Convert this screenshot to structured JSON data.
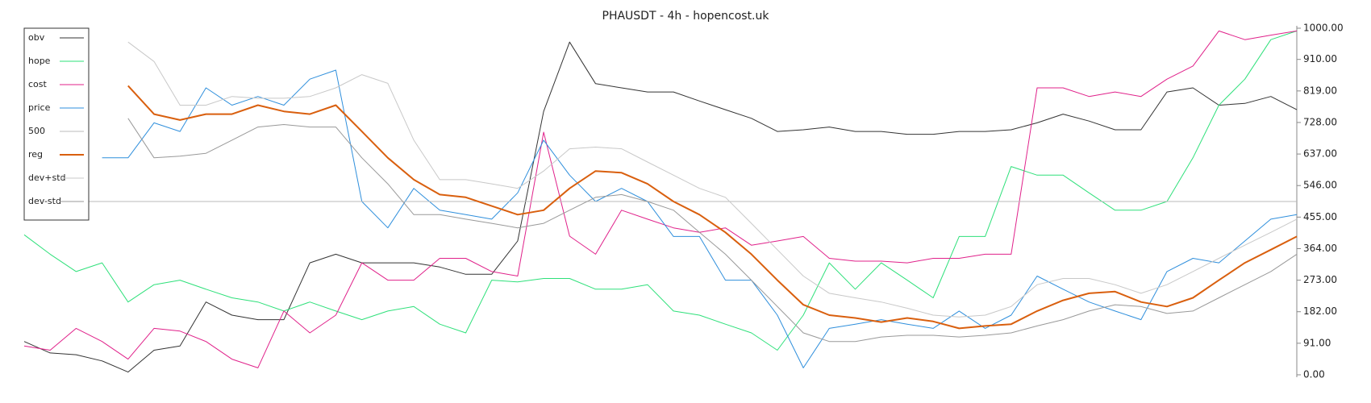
{
  "chart_data": {
    "type": "line",
    "title": "PHAUSDT - 4h - hopencost.uk",
    "ylim": [
      0,
      1000
    ],
    "yticks": [
      {
        "value": 0,
        "label": "0.00"
      },
      {
        "value": 91,
        "label": "91.00"
      },
      {
        "value": 182,
        "label": "182.00"
      },
      {
        "value": 273,
        "label": "273.00"
      },
      {
        "value": 364,
        "label": "364.00"
      },
      {
        "value": 455,
        "label": "455.00"
      },
      {
        "value": 546,
        "label": "546.00"
      },
      {
        "value": 637,
        "label": "637.00"
      },
      {
        "value": 728,
        "label": "728.00"
      },
      {
        "value": 819,
        "label": "819.00"
      },
      {
        "value": 910,
        "label": "910.00"
      },
      {
        "value": 1000,
        "label": "1000.00"
      }
    ],
    "legend": "top-left",
    "series": [
      {
        "name": "obv",
        "color": "#333333",
        "width": 1,
        "values": [
          96,
          63,
          58,
          40,
          8,
          71,
          83,
          210,
          172,
          159,
          159,
          323,
          348,
          323,
          323,
          323,
          311,
          290,
          290,
          386,
          760,
          960,
          840,
          828,
          816,
          816,
          790,
          765,
          740,
          702,
          707,
          715,
          702,
          702,
          694,
          694,
          702,
          702,
          707,
          727,
          752,
          732,
          707,
          707,
          816,
          828,
          778,
          783,
          803,
          765
        ]
      },
      {
        "name": "hope",
        "color": "#2ee07a",
        "width": 1,
        "values": [
          404,
          348,
          298,
          323,
          210,
          260,
          273,
          247,
          222,
          210,
          184,
          210,
          184,
          159,
          184,
          197,
          146,
          121,
          273,
          268,
          278,
          278,
          247,
          247,
          260,
          184,
          172,
          146,
          121,
          71,
          172,
          323,
          247,
          323,
          273,
          222,
          399,
          399,
          601,
          576,
          576,
          525,
          475,
          475,
          500,
          626,
          778,
          853,
          967,
          992
        ]
      },
      {
        "name": "cost",
        "color": "#e0218a",
        "width": 1,
        "values": [
          83,
          71,
          134,
          96,
          45,
          134,
          126,
          96,
          45,
          20,
          184,
          121,
          172,
          323,
          273,
          273,
          336,
          336,
          298,
          285,
          700,
          400,
          348,
          475,
          449,
          424,
          411,
          424,
          374,
          386,
          399,
          336,
          328,
          328,
          323,
          336,
          336,
          348,
          348,
          828,
          828,
          803,
          816,
          803,
          853,
          891,
          992,
          967,
          980,
          992
        ]
      },
      {
        "name": "price",
        "color": "#2f8fdc",
        "width": 1,
        "values": [
          null,
          null,
          null,
          626,
          626,
          727,
          702,
          828,
          778,
          803,
          778,
          853,
          879,
          500,
          424,
          538,
          475,
          462,
          449,
          525,
          677,
          576,
          500,
          538,
          500,
          399,
          399,
          273,
          273,
          172,
          20,
          134,
          146,
          159,
          146,
          134,
          184,
          134,
          172,
          285,
          247,
          210,
          184,
          159,
          298,
          336,
          323,
          386,
          449,
          462
        ]
      },
      {
        "name": "500",
        "color": "#bbbbbb",
        "width": 1,
        "values": [
          500,
          500,
          500,
          500,
          500,
          500,
          500,
          500,
          500,
          500,
          500,
          500,
          500,
          500,
          500,
          500,
          500,
          500,
          500,
          500,
          500,
          500,
          500,
          500,
          500,
          500,
          500,
          500,
          500,
          500,
          500,
          500,
          500,
          500,
          500,
          500,
          500,
          500,
          500,
          500,
          500,
          500,
          500,
          500,
          500,
          500,
          500,
          500,
          500,
          500
        ]
      },
      {
        "name": "reg",
        "color": "#d95f0e",
        "width": 2,
        "values": [
          null,
          null,
          null,
          null,
          834,
          752,
          735,
          752,
          752,
          778,
          760,
          752,
          778,
          702,
          626,
          563,
          520,
          512,
          487,
          462,
          475,
          538,
          588,
          583,
          551,
          500,
          462,
          411,
          348,
          273,
          202,
          172,
          164,
          152,
          164,
          154,
          134,
          141,
          146,
          184,
          215,
          235,
          240,
          210,
          197,
          222,
          273,
          323,
          361,
          399
        ]
      },
      {
        "name": "dev+std",
        "color": "#c8c8c8",
        "width": 1,
        "values": [
          null,
          null,
          null,
          null,
          960,
          904,
          778,
          778,
          803,
          798,
          798,
          803,
          828,
          866,
          841,
          677,
          563,
          563,
          551,
          538,
          588,
          652,
          657,
          652,
          614,
          576,
          538,
          512,
          437,
          361,
          285,
          235,
          222,
          210,
          192,
          172,
          167,
          172,
          197,
          260,
          278,
          278,
          260,
          235,
          260,
          298,
          336,
          374,
          411,
          449
        ]
      },
      {
        "name": "dev-std",
        "color": "#999999",
        "width": 1,
        "values": [
          null,
          null,
          null,
          null,
          740,
          626,
          631,
          639,
          677,
          715,
          722,
          715,
          715,
          626,
          551,
          462,
          462,
          449,
          437,
          424,
          437,
          475,
          512,
          520,
          500,
          475,
          411,
          348,
          273,
          197,
          121,
          96,
          96,
          109,
          114,
          114,
          109,
          114,
          121,
          141,
          159,
          184,
          202,
          197,
          177,
          184,
          222,
          260,
          298,
          348
        ]
      }
    ]
  }
}
